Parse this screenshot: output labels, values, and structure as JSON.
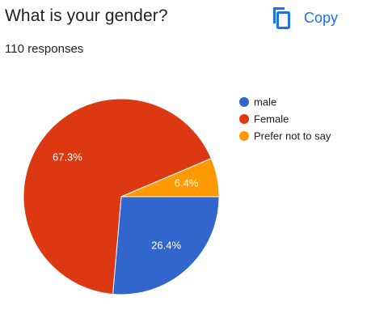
{
  "header": {
    "question": "What is your gender?",
    "responses": "110 responses",
    "copy_label": "Copy",
    "copy_icon": "copy-icon",
    "accent_color": "#1a73e8"
  },
  "chart_data": {
    "type": "pie",
    "title": "What is your gender?",
    "legend_position": "right",
    "slices": [
      {
        "name": "male",
        "value": 26.4,
        "label": "26.4%",
        "color": "#3366cc"
      },
      {
        "name": "Female",
        "value": 67.3,
        "label": "67.3%",
        "color": "#dc3912"
      },
      {
        "name": "Prefer not to say",
        "value": 6.4,
        "label": "6.4%",
        "color": "#ff9900"
      }
    ]
  }
}
